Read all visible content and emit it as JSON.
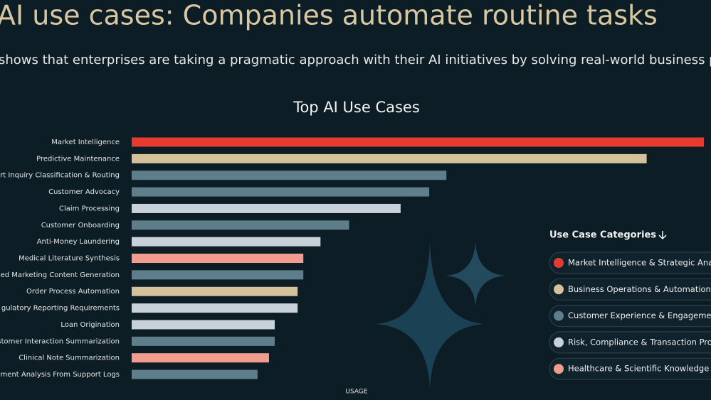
{
  "header": {
    "title": "AI use cases: Companies automate routine tasks",
    "subtitle": "shows that enterprises are taking a pragmatic approach with their AI initiatives by solving real-world business problems"
  },
  "chart_data": {
    "type": "bar",
    "orientation": "horizontal",
    "title": "Top AI Use Cases",
    "x_label": "USAGE",
    "categories": [
      "Market Intelligence",
      "Predictive Maintenance",
      "rt Inquiry Classification & Routing",
      "Customer Advocacy",
      "Claim Processing",
      "Customer Onboarding",
      "Anti-Money Laundering",
      "Medical Literature Synthesis",
      "ed Marketing Content Generation",
      "Order Process Automation",
      "gulatory Reporting Requirements",
      "Loan Origination",
      "stomer Interaction Summarization",
      "Clinical Note Summarization",
      "ment Analysis From Support Logs"
    ],
    "values": [
      100,
      90,
      55,
      52,
      47,
      38,
      33,
      30,
      30,
      29,
      29,
      25,
      25,
      24,
      22
    ],
    "colors": [
      "#e63b2e",
      "#d5c29a",
      "#5e7e8b",
      "#5e7e8b",
      "#c8d0d9",
      "#5e7e8b",
      "#c8d0d9",
      "#f29c90",
      "#5e7e8b",
      "#d5c29a",
      "#c8d0d9",
      "#c8d0d9",
      "#5e7e8b",
      "#f29c90",
      "#5e7e8b"
    ],
    "xlim": [
      0,
      100
    ],
    "legend": {
      "title": "Use Case Categories",
      "position": "right",
      "items": [
        {
          "name": "Market Intelligence & Strategic Anal",
          "color": "#e63b2e"
        },
        {
          "name": "Business Operations & Automation",
          "color": "#d5c29a"
        },
        {
          "name": "Customer Experience & Engagemen",
          "color": "#5e7e8b"
        },
        {
          "name": "Risk, Compliance & Transaction Pro",
          "color": "#c8d0d9"
        },
        {
          "name": "Healthcare & Scientific Knowledge M",
          "color": "#f29c90"
        }
      ]
    }
  }
}
